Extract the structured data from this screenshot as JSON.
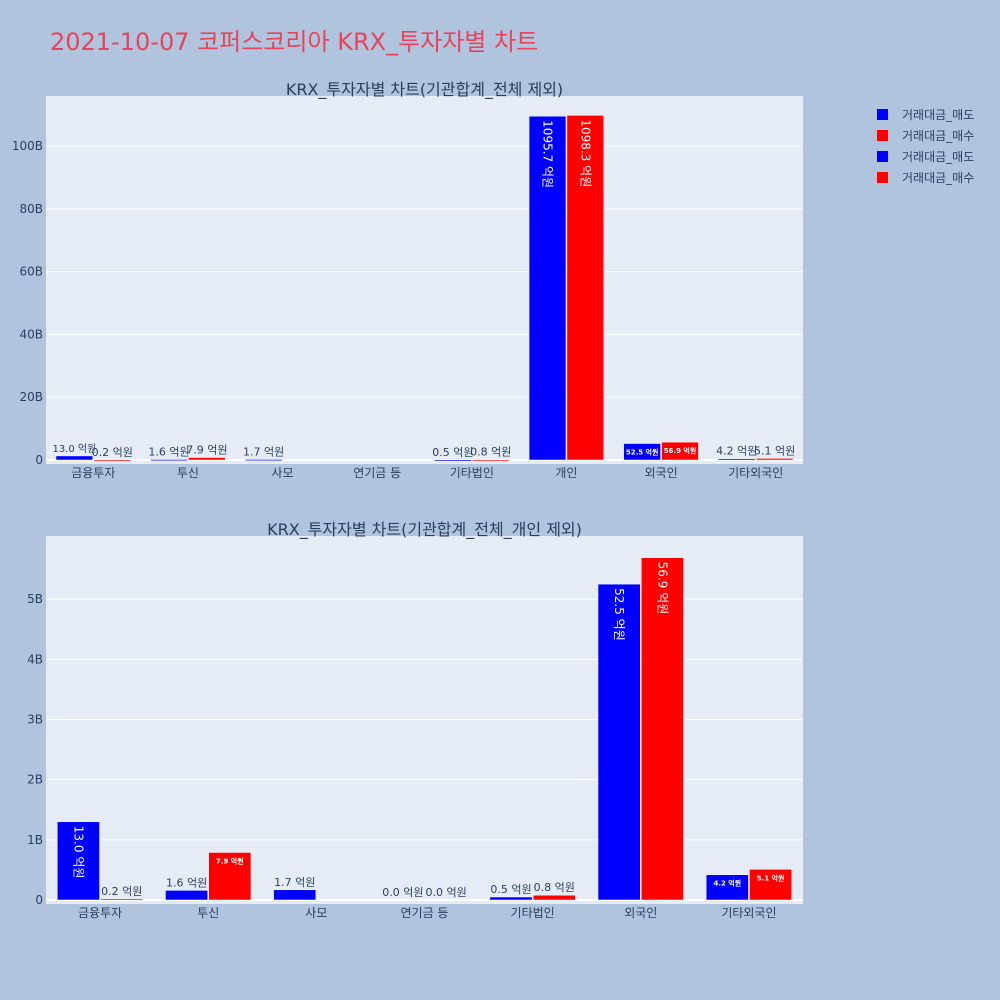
{
  "page": {
    "title": "2021-10-07 코퍼스코리아 KRX_투자자별 차트"
  },
  "legend": {
    "entries": [
      {
        "label": "거래대금_매도",
        "color": "#0000ff"
      },
      {
        "label": "거래대금_매수",
        "color": "#ff0000"
      },
      {
        "label": "거래대금_매도",
        "color": "#0000ff"
      },
      {
        "label": "거래대금_매수",
        "color": "#ff0000"
      }
    ]
  },
  "colors": {
    "sell": "#0000ff",
    "buy": "#ff0000",
    "plot_bg": "#e5ecf6",
    "page_bg": "#b0c4de",
    "title": "#e8435a",
    "axis_text": "#2a3f5f"
  },
  "chart_data": [
    {
      "type": "bar",
      "title": "KRX_투자자별 차트(기관합계_전체 제외)",
      "categories": [
        "금융투자",
        "투신",
        "사모",
        "연기금 등",
        "기타법인",
        "개인",
        "외국인",
        "기타외국인"
      ],
      "y_ticks": [
        {
          "value": 0,
          "label": "0"
        },
        {
          "value": 20,
          "label": "20B"
        },
        {
          "value": 40,
          "label": "40B"
        },
        {
          "value": 60,
          "label": "60B"
        },
        {
          "value": 80,
          "label": "80B"
        },
        {
          "value": 100,
          "label": "100B"
        }
      ],
      "ylim": [
        0,
        116
      ],
      "y_unit": "B",
      "series": [
        {
          "name": "거래대금_매도",
          "color": "#0000ff",
          "values": [
            1.3,
            0.16,
            0.17,
            0.0,
            0.05,
            109.57,
            5.25,
            0.42
          ],
          "labels": [
            "13.0 억원",
            "1.6 억원",
            "1.7 억원",
            "",
            "0.5 억원",
            "1095.7 억원",
            "52.5 억원",
            "4.2 억원"
          ]
        },
        {
          "name": "거래대금_매수",
          "color": "#ff0000",
          "values": [
            0.02,
            0.79,
            0.0,
            0.0,
            0.08,
            109.83,
            5.69,
            0.51
          ],
          "labels": [
            "0.2 억원",
            "7.9 억원",
            "",
            "",
            "0.8 억원",
            "1098.3 억원",
            "56.9 억원",
            "5.1 억원"
          ]
        }
      ]
    },
    {
      "type": "bar",
      "title": "KRX_투자자별 차트(기관합계_전체_개인 제외)",
      "categories": [
        "금융투자",
        "투신",
        "사모",
        "연기금 등",
        "기타법인",
        "외국인",
        "기타외국인"
      ],
      "y_ticks": [
        {
          "value": 0,
          "label": "0"
        },
        {
          "value": 1,
          "label": "1B"
        },
        {
          "value": 2,
          "label": "2B"
        },
        {
          "value": 3,
          "label": "3B"
        },
        {
          "value": 4,
          "label": "4B"
        },
        {
          "value": 5,
          "label": "5B"
        }
      ],
      "ylim": [
        0,
        6.05
      ],
      "y_unit": "B",
      "series": [
        {
          "name": "거래대금_매도",
          "color": "#0000ff",
          "values": [
            1.3,
            0.16,
            0.17,
            0.0,
            0.05,
            5.25,
            0.42
          ],
          "labels": [
            "13.0 억원",
            "1.6 억원",
            "1.7 억원",
            "0.0 억원",
            "0.5 억원",
            "52.5 억원",
            "4.2 억원"
          ]
        },
        {
          "name": "거래대금_매수",
          "color": "#ff0000",
          "values": [
            0.02,
            0.79,
            0.0,
            0.0,
            0.08,
            5.69,
            0.51
          ],
          "labels": [
            "0.2 억원",
            "7.9 억원",
            "",
            "0.0 억원",
            "0.8 억원",
            "56.9 억원",
            "5.1 억원"
          ]
        }
      ]
    }
  ]
}
